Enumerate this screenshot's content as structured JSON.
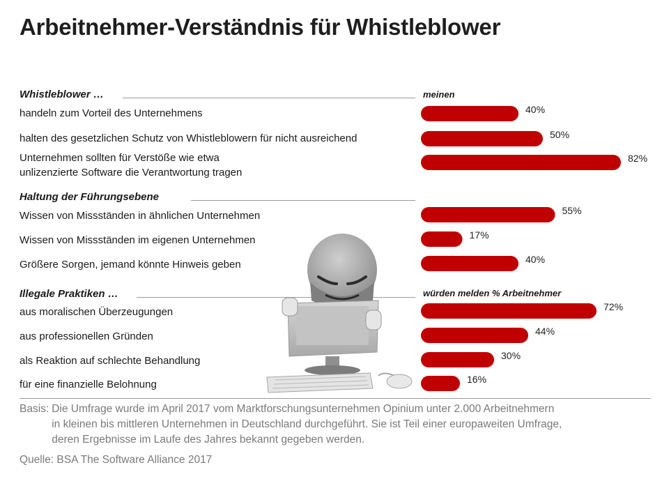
{
  "title": "Arbeitnehmer-Verständnis für Whistleblower",
  "sections": [
    {
      "label": "Whistleblower …",
      "column_header": "meinen"
    },
    {
      "label": "Haltung der Führungsebene",
      "column_header": ""
    },
    {
      "label": "Illegale Praktiken …",
      "column_header": "würden melden % Arbeitnehmer"
    }
  ],
  "chart_data": {
    "type": "bar",
    "orientation": "horizontal",
    "unit": "%",
    "xlim": [
      0,
      100
    ],
    "bar_color": "#c00000",
    "grid": false,
    "categories": [
      [
        "handeln zum Vorteil des Unternehmens"
      ],
      [
        "halten des gesetzlichen Schutz von Whistleblowern für nicht ausreichend"
      ],
      [
        "Unternehmen sollten für Verstöße wie etwa",
        "unlizenzierte Software die Verantwortung tragen"
      ],
      [
        "Wissen von Missständen in ähnlichen Unternehmen"
      ],
      [
        "Wissen von Missständen im eigenen Unternehmen"
      ],
      [
        "Größere Sorgen, jemand könnte Hinweis geben"
      ],
      [
        "aus moralischen Überzeugungen"
      ],
      [
        "aus professionellen Gründen"
      ],
      [
        "als Reaktion auf schlechte Behandlung"
      ],
      [
        "für eine finanzielle Belohnung"
      ]
    ],
    "values": [
      40,
      50,
      82,
      55,
      17,
      40,
      72,
      44,
      30,
      16
    ],
    "value_labels": [
      "40%",
      "50%",
      "82%",
      "55%",
      "17%",
      "40%",
      "72%",
      "44%",
      "30%",
      "16%"
    ],
    "groups": [
      0,
      0,
      0,
      1,
      1,
      1,
      2,
      2,
      2,
      2
    ]
  },
  "footnote": {
    "basis_prefix": "Basis:",
    "basis_lines": [
      "Die Umfrage wurde im April 2017 vom Marktforschungsunternehmen Opinium unter 2.000 Arbeitnehmern",
      "in kleinen bis mittleren Unternehmen in Deutschland durchgeführt. Sie ist Teil einer europaweiten Umfrage,",
      "deren Ergebnisse im Laufe des Jahres bekannt gegeben werden."
    ],
    "source": "Quelle: BSA The Software Alliance 2017"
  },
  "illustration": {
    "icon": "hooded-hacker-with-monitor-icon",
    "color": "#9e9e9e"
  }
}
